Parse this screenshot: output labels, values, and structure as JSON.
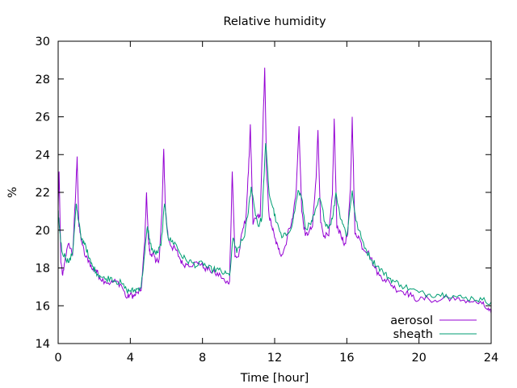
{
  "chart_data": {
    "type": "line",
    "title": "Relative humidity",
    "xlabel": "Time [hour]",
    "ylabel": "%",
    "xlim": [
      0,
      24
    ],
    "ylim": [
      14,
      30
    ],
    "xticks": [
      0,
      4,
      8,
      12,
      16,
      20,
      24
    ],
    "yticks": [
      14,
      16,
      18,
      20,
      22,
      24,
      26,
      28,
      30
    ],
    "grid": false,
    "legend_position": "bottom-right",
    "series": [
      {
        "name": "aerosol",
        "color": "#9400d3",
        "x": [
          0,
          0.05,
          0.15,
          0.25,
          0.4,
          0.6,
          0.8,
          0.95,
          1.05,
          1.15,
          1.3,
          1.5,
          1.7,
          1.9,
          2.1,
          2.3,
          2.6,
          2.9,
          3.2,
          3.5,
          3.8,
          4.0,
          4.2,
          4.4,
          4.6,
          4.8,
          4.9,
          5.0,
          5.1,
          5.25,
          5.4,
          5.6,
          5.75,
          5.85,
          5.95,
          6.1,
          6.3,
          6.5,
          6.7,
          6.9,
          7.2,
          7.5,
          7.8,
          8.1,
          8.4,
          8.7,
          9.0,
          9.3,
          9.5,
          9.65,
          9.8,
          10.0,
          10.2,
          10.4,
          10.55,
          10.65,
          10.8,
          11.0,
          11.2,
          11.35,
          11.45,
          11.55,
          11.7,
          11.85,
          12.0,
          12.2,
          12.4,
          12.6,
          12.8,
          13.0,
          13.2,
          13.35,
          13.5,
          13.7,
          13.9,
          14.1,
          14.3,
          14.4,
          14.55,
          14.75,
          15.0,
          15.2,
          15.3,
          15.45,
          15.65,
          15.85,
          16.05,
          16.2,
          16.3,
          16.45,
          16.65,
          16.9,
          17.2,
          17.5,
          17.8,
          18.1,
          18.4,
          18.7,
          19.0,
          19.3,
          19.6,
          20.0,
          20.5,
          21.0,
          21.5,
          22.0,
          22.5,
          23.0,
          23.5,
          23.8,
          24.0
        ],
        "y": [
          21.2,
          23.1,
          18.3,
          17.6,
          18.6,
          19.3,
          18.7,
          21.5,
          23.9,
          20.2,
          19.4,
          18.6,
          18.4,
          17.9,
          17.9,
          17.5,
          17.3,
          17.2,
          17.3,
          17.1,
          16.4,
          16.6,
          16.5,
          16.7,
          16.8,
          19.4,
          22.0,
          19.5,
          18.7,
          18.8,
          18.3,
          18.5,
          20.9,
          24.3,
          21.0,
          19.6,
          19.1,
          19.0,
          18.6,
          18.2,
          18.2,
          18.2,
          18.3,
          18.0,
          17.9,
          17.7,
          17.6,
          17.2,
          17.3,
          23.1,
          18.6,
          18.6,
          19.9,
          20.6,
          23.1,
          25.6,
          20.3,
          20.7,
          20.7,
          25.4,
          28.6,
          23.1,
          20.7,
          20.2,
          19.6,
          19.0,
          18.7,
          19.2,
          20.1,
          20.6,
          22.2,
          25.5,
          21.0,
          19.7,
          19.9,
          20.2,
          22.8,
          25.3,
          20.4,
          19.7,
          19.7,
          21.9,
          25.9,
          20.1,
          19.9,
          19.2,
          19.8,
          22.2,
          26.0,
          19.8,
          19.7,
          19.0,
          18.9,
          18.1,
          17.6,
          17.4,
          17.2,
          16.9,
          16.8,
          16.7,
          16.5,
          16.3,
          16.4,
          16.2,
          16.5,
          16.3,
          16.3,
          16.2,
          16.1,
          15.8,
          15.6
        ]
      },
      {
        "name": "sheath",
        "color": "#009e73",
        "x": [
          0,
          0.05,
          0.2,
          0.4,
          0.6,
          0.8,
          1.0,
          1.1,
          1.3,
          1.5,
          1.7,
          1.9,
          2.1,
          2.3,
          2.6,
          2.9,
          3.2,
          3.5,
          3.8,
          4.0,
          4.2,
          4.4,
          4.6,
          4.8,
          4.95,
          5.1,
          5.3,
          5.5,
          5.7,
          5.9,
          6.1,
          6.3,
          6.5,
          6.8,
          7.1,
          7.4,
          7.7,
          8.0,
          8.3,
          8.6,
          8.9,
          9.2,
          9.5,
          9.7,
          9.9,
          10.1,
          10.3,
          10.5,
          10.7,
          10.9,
          11.1,
          11.3,
          11.5,
          11.7,
          11.9,
          12.1,
          12.4,
          12.7,
          13.0,
          13.3,
          13.5,
          13.7,
          14.0,
          14.2,
          14.5,
          14.8,
          15.0,
          15.2,
          15.4,
          15.6,
          15.8,
          16.0,
          16.3,
          16.5,
          16.8,
          17.1,
          17.4,
          17.7,
          18.0,
          18.3,
          18.6,
          19.0,
          19.5,
          20.0,
          20.5,
          21.0,
          21.5,
          22.0,
          22.5,
          23.0,
          23.5,
          24.0
        ],
        "y": [
          21.0,
          20.4,
          18.9,
          18.6,
          18.3,
          18.8,
          21.4,
          20.6,
          19.5,
          19.3,
          18.5,
          18.1,
          17.8,
          17.6,
          17.4,
          17.5,
          17.3,
          17.2,
          16.8,
          16.8,
          16.8,
          16.9,
          17.0,
          18.8,
          20.2,
          19.3,
          18.8,
          18.8,
          19.2,
          21.4,
          19.6,
          19.4,
          19.3,
          18.7,
          18.4,
          18.3,
          18.1,
          18.3,
          18.0,
          17.9,
          17.9,
          17.7,
          17.6,
          19.6,
          18.8,
          19.3,
          19.6,
          20.7,
          22.3,
          21.1,
          20.2,
          20.7,
          24.6,
          21.9,
          21.2,
          20.4,
          19.6,
          19.8,
          20.4,
          22.1,
          21.7,
          20.1,
          20.3,
          20.8,
          21.7,
          20.4,
          20.2,
          20.6,
          22.0,
          20.9,
          20.3,
          19.7,
          22.1,
          20.5,
          19.6,
          18.9,
          18.4,
          18.1,
          17.8,
          17.5,
          17.3,
          17.1,
          16.9,
          16.7,
          16.6,
          16.6,
          16.6,
          16.5,
          16.4,
          16.4,
          16.3,
          16.2
        ]
      }
    ]
  }
}
